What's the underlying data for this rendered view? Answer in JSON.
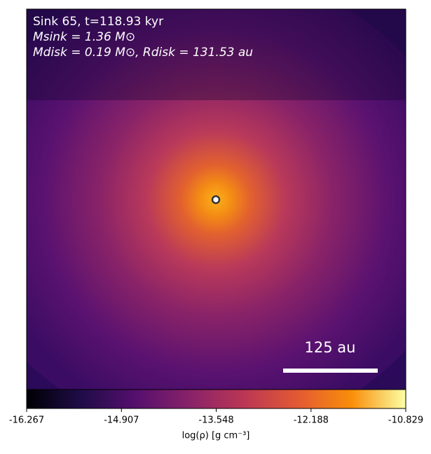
{
  "chart_data": {
    "type": "density-map",
    "annotations": [
      "Sink 65, t=118.93 kyr",
      "Msink = 1.36 M⊙",
      "Mdisk = 0.19 M⊙, Rdisk = 131.53 au"
    ],
    "scale_bar_label": "125 au",
    "colorbar_label": "log(ρ) [g cm⁻³]",
    "clim": [
      -16.267,
      -10.829
    ],
    "colorbar_ticks": [
      -16.267,
      -14.907,
      -13.548,
      -12.188,
      -10.829
    ],
    "colormap_colors": [
      "#000004",
      "#1f0c48",
      "#550f6d",
      "#88226a",
      "#ba3655",
      "#e35933",
      "#f98e09",
      "#fcffa4"
    ]
  }
}
